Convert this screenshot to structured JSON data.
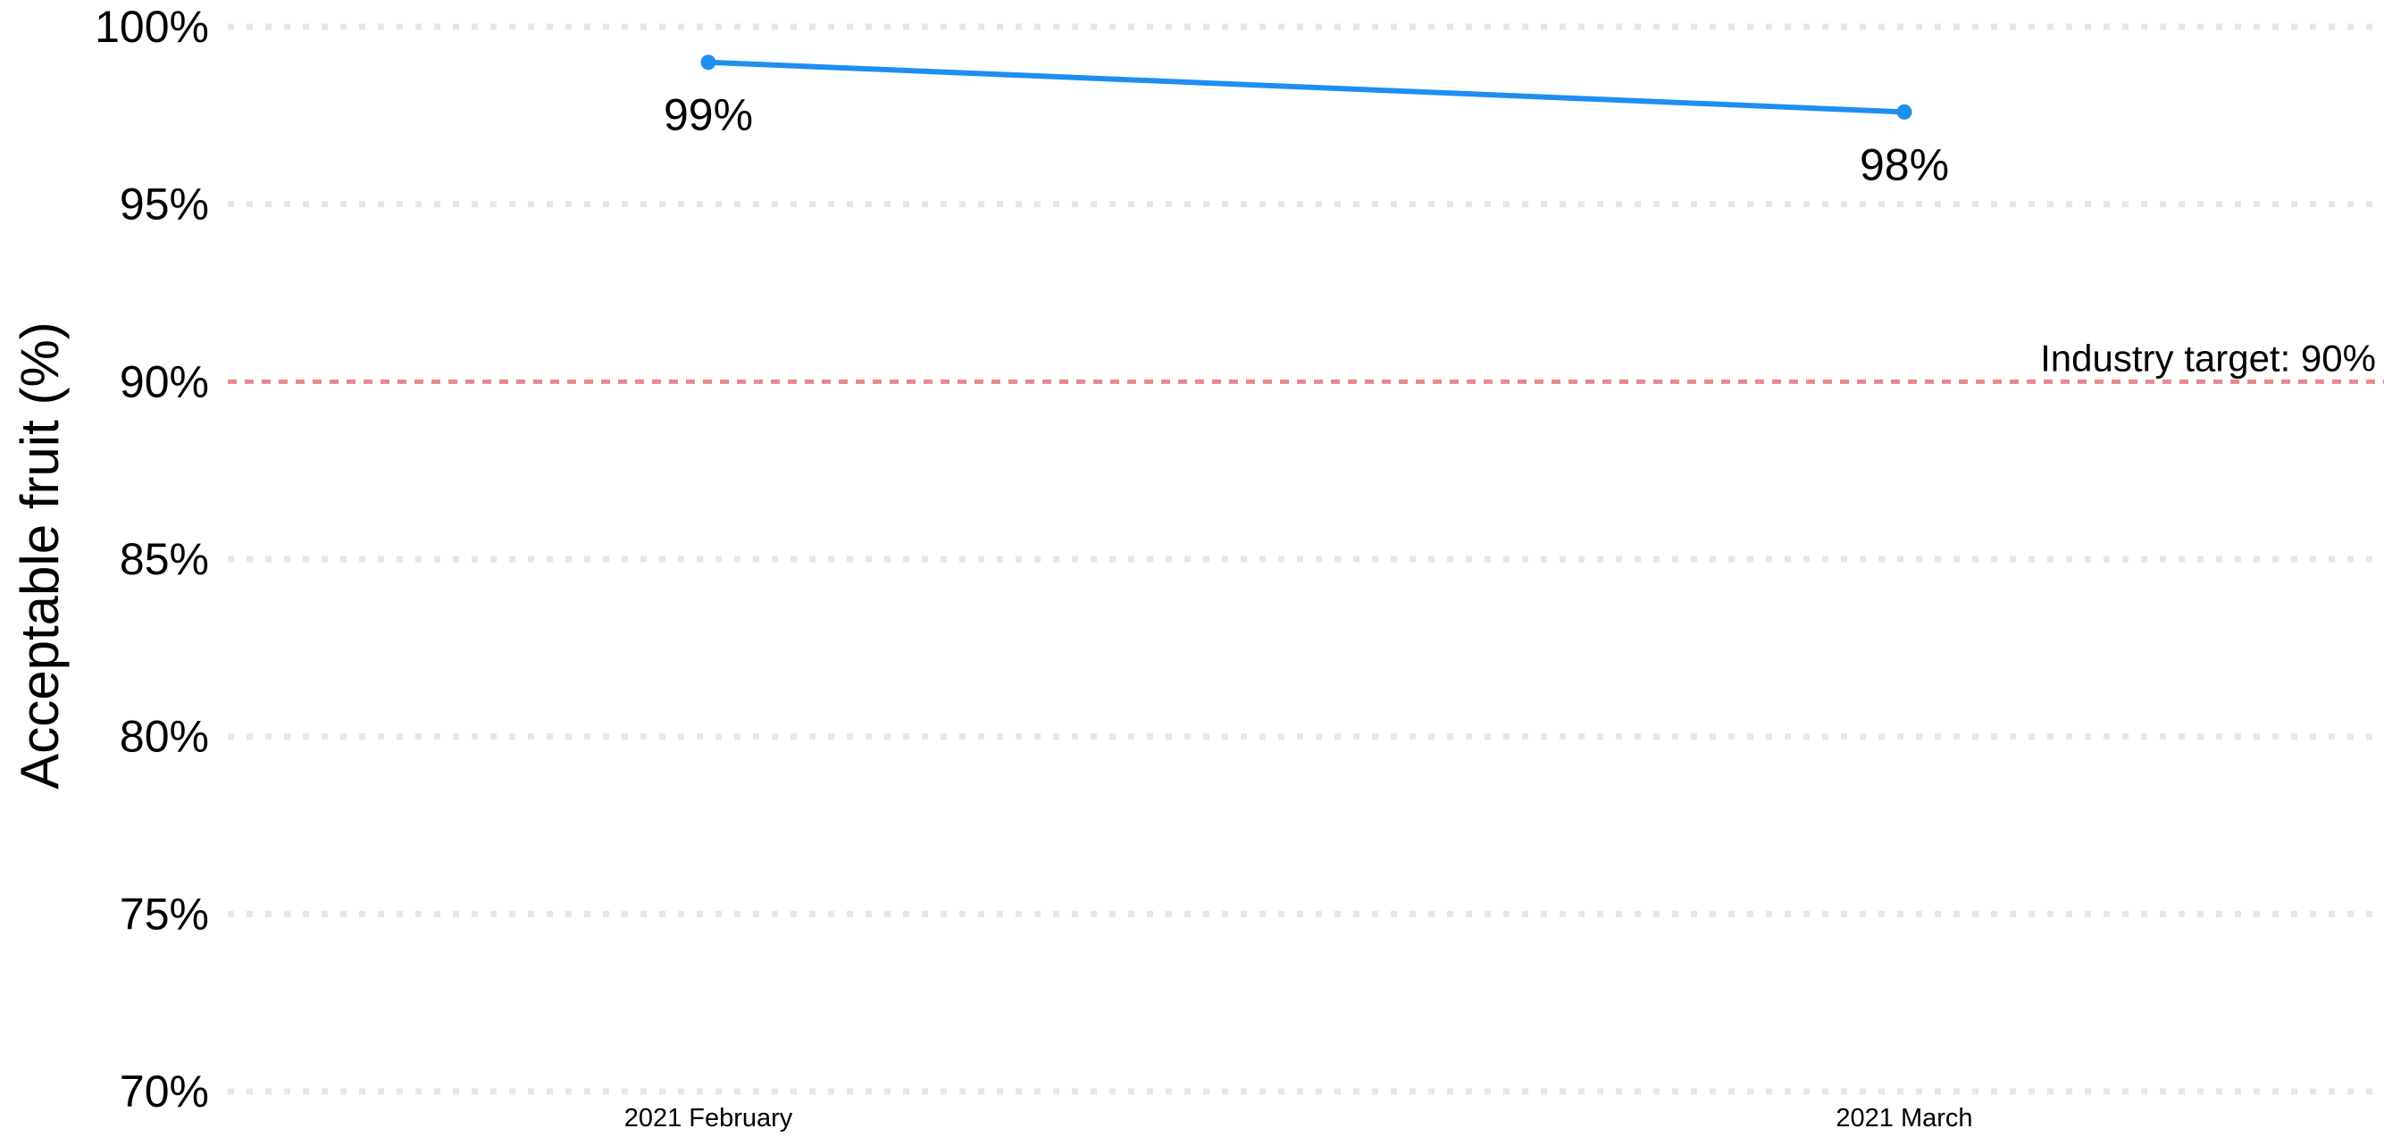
{
  "chart_data": {
    "type": "line",
    "title": "",
    "xlabel": "",
    "ylabel": "Acceptable fruit (%)",
    "categories": [
      "2021 February",
      "2021 March"
    ],
    "series": [
      {
        "color": "#1e8ff0",
        "values": [
          99.0,
          97.6
        ],
        "labels": [
          "99%",
          "98%"
        ]
      }
    ],
    "ylim": [
      70,
      100
    ],
    "yticks": [
      70,
      75,
      80,
      85,
      90,
      95,
      100
    ],
    "ytick_labels": [
      "70%",
      "75%",
      "80%",
      "85%",
      "90%",
      "95%",
      "100%"
    ],
    "grid": true,
    "grid_color": "#e6e6e6",
    "reference_line": {
      "value": 90,
      "label": "Industry target: 90%",
      "color": "#e8898f"
    },
    "legend": "none"
  }
}
